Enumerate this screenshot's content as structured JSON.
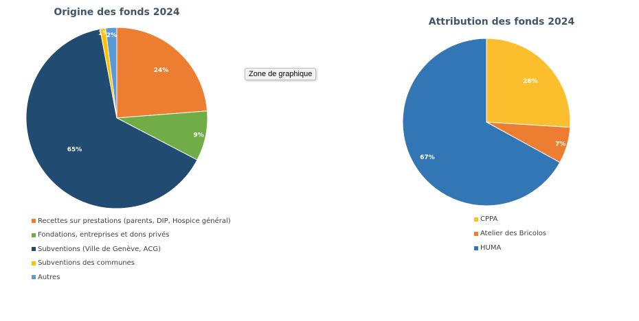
{
  "tooltip": "Zone de graphique",
  "chart_data": [
    {
      "type": "pie",
      "title": "Origine des fonds 2024",
      "legend_position": "bottom-left",
      "slices": [
        {
          "label": "Recettes sur prestations (parents, DIP, Hospice général)",
          "value": 24,
          "value_label": "24%",
          "color": "#ed7d31"
        },
        {
          "label": "Fondations, entreprises et dons privés",
          "value": 9,
          "value_label": "9%",
          "color": "#70ad47"
        },
        {
          "label": "Subventions (Ville de Genève, ACG)",
          "value": 65,
          "value_label": "65%",
          "color": "#224b72"
        },
        {
          "label": "Subventions des communes",
          "value": 1,
          "value_label": "1%",
          "color": "#ffc000"
        },
        {
          "label": "Autres",
          "value": 2,
          "value_label": "2%",
          "color": "#5b9bd5"
        }
      ]
    },
    {
      "type": "pie",
      "title": "Attribution des fonds 2024",
      "legend_position": "bottom",
      "slices": [
        {
          "label": "CPPA",
          "value": 26,
          "value_label": "26%",
          "color": "#fbbf2e"
        },
        {
          "label": "Atelier des Bricolos",
          "value": 7,
          "value_label": "7%",
          "color": "#ed7d31"
        },
        {
          "label": "HUMA",
          "value": 67,
          "value_label": "67%",
          "color": "#3276b6"
        }
      ]
    }
  ]
}
